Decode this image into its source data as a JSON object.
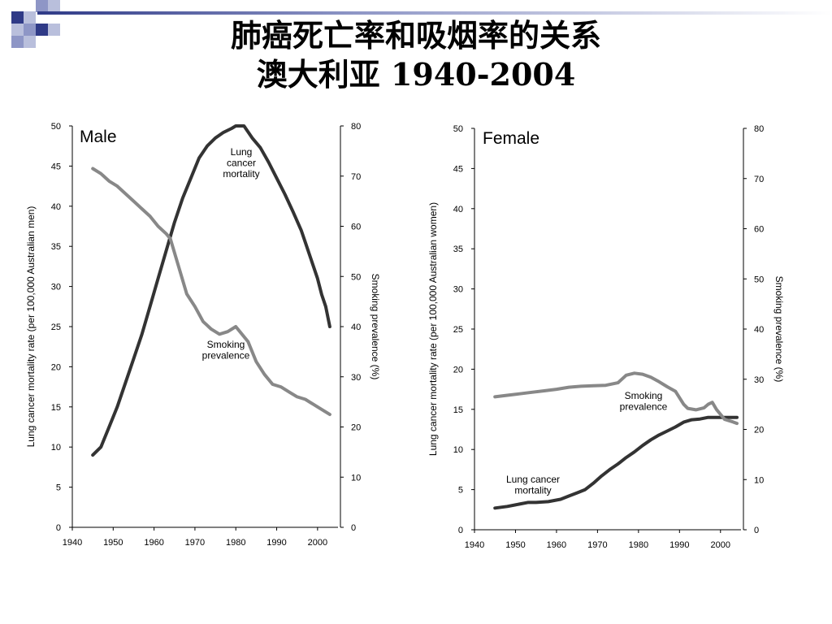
{
  "title_line1": "肺癌死亡率和吸烟率的关系",
  "title_line2": "澳大利亚 1940-2004",
  "colors": {
    "mortality": "#333333",
    "smoking": "#888888",
    "axis": "#000000"
  },
  "chart_data": [
    {
      "type": "line",
      "panel_label": "Male",
      "ylabel_left": "Lung cancer mortality rate (per 100,000 Australian men)",
      "ylabel_right": "Smoking prevalence (%)",
      "x_ticks": [
        "1940",
        "1950",
        "1960",
        "1970",
        "1980",
        "1990",
        "2000"
      ],
      "y_left_ticks": [
        "0",
        "5",
        "10",
        "15",
        "20",
        "25",
        "30",
        "35",
        "40",
        "45",
        "50"
      ],
      "y_right_ticks": [
        "0",
        "10",
        "20",
        "30",
        "40",
        "50",
        "60",
        "70",
        "80"
      ],
      "xlim": [
        1940,
        2005
      ],
      "ylim_left": [
        0,
        50
      ],
      "ylim_right": [
        0,
        80
      ],
      "series": [
        {
          "name": "Lung cancer mortality",
          "axis": "left",
          "annotation": [
            "Lung",
            "cancer",
            "mortality"
          ],
          "points": [
            [
              1945,
              9
            ],
            [
              1947,
              10
            ],
            [
              1949,
              12.5
            ],
            [
              1951,
              15
            ],
            [
              1953,
              18
            ],
            [
              1955,
              21
            ],
            [
              1957,
              24
            ],
            [
              1959,
              27.5
            ],
            [
              1961,
              31
            ],
            [
              1963,
              34.5
            ],
            [
              1965,
              38
            ],
            [
              1967,
              41
            ],
            [
              1969,
              43.5
            ],
            [
              1971,
              46
            ],
            [
              1973,
              47.5
            ],
            [
              1975,
              48.5
            ],
            [
              1977,
              49.2
            ],
            [
              1979,
              49.7
            ],
            [
              1980,
              50
            ],
            [
              1982,
              50
            ],
            [
              1984,
              48.5
            ],
            [
              1986,
              47.3
            ],
            [
              1988,
              45.5
            ],
            [
              1990,
              43.5
            ],
            [
              1992,
              41.5
            ],
            [
              1994,
              39.3
            ],
            [
              1996,
              37
            ],
            [
              1997,
              35.5
            ],
            [
              1998,
              34
            ],
            [
              2000,
              31
            ],
            [
              2001,
              29
            ],
            [
              2002,
              27.5
            ],
            [
              2003,
              25
            ]
          ]
        },
        {
          "name": "Smoking prevalence",
          "axis": "right",
          "annotation": [
            "Smoking",
            "prevalence"
          ],
          "points": [
            [
              1945,
              71.5
            ],
            [
              1947,
              70.5
            ],
            [
              1949,
              69
            ],
            [
              1951,
              68
            ],
            [
              1953,
              66.5
            ],
            [
              1955,
              65
            ],
            [
              1957,
              63.5
            ],
            [
              1959,
              62
            ],
            [
              1961,
              60
            ],
            [
              1963,
              58.5
            ],
            [
              1964,
              57.5
            ],
            [
              1966,
              52
            ],
            [
              1968,
              46.5
            ],
            [
              1970,
              44
            ],
            [
              1972,
              41
            ],
            [
              1974,
              39.5
            ],
            [
              1976,
              38.5
            ],
            [
              1978,
              39
            ],
            [
              1980,
              40
            ],
            [
              1982,
              38
            ],
            [
              1983,
              37
            ],
            [
              1985,
              33
            ],
            [
              1987,
              30.5
            ],
            [
              1989,
              28.5
            ],
            [
              1991,
              28
            ],
            [
              1993,
              27
            ],
            [
              1995,
              26
            ],
            [
              1997,
              25.5
            ],
            [
              1999,
              24.5
            ],
            [
              2001,
              23.5
            ],
            [
              2003,
              22.5
            ]
          ]
        }
      ]
    },
    {
      "type": "line",
      "panel_label": "Female",
      "ylabel_left": "Lung cancer mortality rate (per 100,000 Australian women)",
      "ylabel_right": "Smoking prevalence (%)",
      "x_ticks": [
        "1940",
        "1950",
        "1960",
        "1970",
        "1980",
        "1990",
        "2000"
      ],
      "y_left_ticks": [
        "0",
        "5",
        "10",
        "15",
        "20",
        "25",
        "30",
        "35",
        "40",
        "45",
        "50"
      ],
      "y_right_ticks": [
        "0",
        "10",
        "20",
        "30",
        "40",
        "50",
        "60",
        "70",
        "80"
      ],
      "xlim": [
        1940,
        2005
      ],
      "ylim_left": [
        0,
        50
      ],
      "ylim_right": [
        0,
        80
      ],
      "series": [
        {
          "name": "Lung cancer mortality",
          "axis": "left",
          "annotation": [
            "Lung cancer",
            "mortality"
          ],
          "points": [
            [
              1945,
              2.7
            ],
            [
              1948,
              2.9
            ],
            [
              1951,
              3.2
            ],
            [
              1953,
              3.4
            ],
            [
              1955,
              3.4
            ],
            [
              1958,
              3.5
            ],
            [
              1961,
              3.8
            ],
            [
              1963,
              4.2
            ],
            [
              1965,
              4.6
            ],
            [
              1967,
              5
            ],
            [
              1969,
              5.8
            ],
            [
              1971,
              6.7
            ],
            [
              1973,
              7.5
            ],
            [
              1975,
              8.2
            ],
            [
              1977,
              9
            ],
            [
              1979,
              9.7
            ],
            [
              1981,
              10.5
            ],
            [
              1983,
              11.2
            ],
            [
              1985,
              11.8
            ],
            [
              1987,
              12.3
            ],
            [
              1989,
              12.8
            ],
            [
              1991,
              13.4
            ],
            [
              1993,
              13.7
            ],
            [
              1995,
              13.8
            ],
            [
              1997,
              14
            ],
            [
              1999,
              14
            ],
            [
              2001,
              14
            ],
            [
              2004,
              14
            ]
          ]
        },
        {
          "name": "Smoking prevalence",
          "axis": "right",
          "annotation": [
            "Smoking",
            "prevalence"
          ],
          "points": [
            [
              1945,
              26.5
            ],
            [
              1948,
              26.8
            ],
            [
              1951,
              27.1
            ],
            [
              1954,
              27.4
            ],
            [
              1957,
              27.7
            ],
            [
              1960,
              28
            ],
            [
              1963,
              28.4
            ],
            [
              1966,
              28.6
            ],
            [
              1969,
              28.7
            ],
            [
              1972,
              28.8
            ],
            [
              1975,
              29.3
            ],
            [
              1977,
              30.8
            ],
            [
              1979,
              31.2
            ],
            [
              1981,
              31
            ],
            [
              1983,
              30.4
            ],
            [
              1985,
              29.5
            ],
            [
              1987,
              28.5
            ],
            [
              1989,
              27.6
            ],
            [
              1991,
              25
            ],
            [
              1992,
              24.2
            ],
            [
              1994,
              23.9
            ],
            [
              1996,
              24.3
            ],
            [
              1997,
              25
            ],
            [
              1998,
              25.4
            ],
            [
              1999,
              24
            ],
            [
              2000,
              23
            ],
            [
              2001,
              22
            ],
            [
              2003,
              21.5
            ],
            [
              2004,
              21.2
            ]
          ]
        }
      ]
    }
  ]
}
